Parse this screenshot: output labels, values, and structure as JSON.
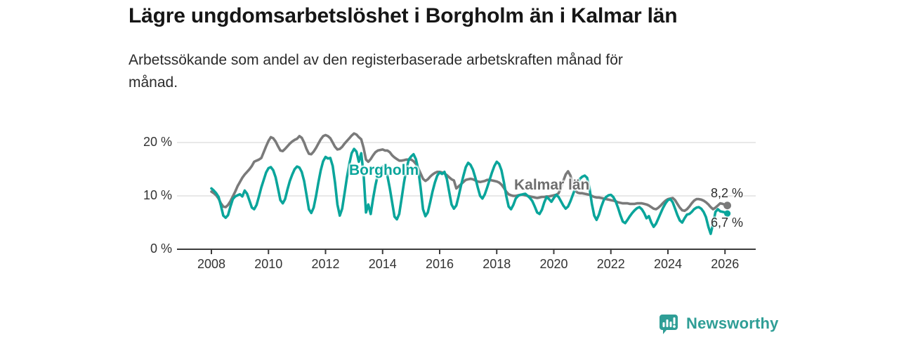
{
  "header": {
    "title": "Lägre ungdomsarbetslöshet i Borgholm än i Kalmar län",
    "subtitle": "Arbetssökande som andel av den registerbaserade arbetskraften månad för månad."
  },
  "footer": {
    "brand": "Newsworthy",
    "brand_color": "#2f9e96"
  },
  "chart_data": {
    "type": "line",
    "title": "Lägre ungdomsarbetslöshet i Borgholm än i Kalmar län",
    "subtitle": "Arbetssökande som andel av den registerbaserade arbetskraften månad för månad.",
    "unit": "%",
    "frequency": "monthly",
    "start": "2008-01",
    "end": "2026-02",
    "grid": "horizontal",
    "legend": "inline-labels",
    "x_axis": {
      "ticks": [
        2008,
        2010,
        2012,
        2014,
        2016,
        2018,
        2020,
        2022,
        2024,
        2026
      ],
      "range": [
        2007.9,
        2027.1
      ]
    },
    "y_axis": {
      "ticks": [
        {
          "value": 20,
          "label": "20 %"
        },
        {
          "value": 10,
          "label": "10 %"
        },
        {
          "value": 0,
          "label": "0 %"
        }
      ],
      "range": [
        0,
        23
      ]
    },
    "series": [
      {
        "name": "Kalmar län",
        "color": "#7A7A7A",
        "label_color": "#6E6E6E",
        "end_label": "8,2 %",
        "end_value": 8.2,
        "end_dot": true,
        "values": [
          10.8,
          10.5,
          10.1,
          9.5,
          8.6,
          8.0,
          7.9,
          8.3,
          9.0,
          9.9,
          10.8,
          11.8,
          12.6,
          13.4,
          14.0,
          14.5,
          15.0,
          15.6,
          16.4,
          16.6,
          16.8,
          17.1,
          18.2,
          19.3,
          20.3,
          21.0,
          20.8,
          20.2,
          19.3,
          18.5,
          18.4,
          18.8,
          19.3,
          19.8,
          20.2,
          20.5,
          20.7,
          21.2,
          20.9,
          20.0,
          18.8,
          17.9,
          17.8,
          18.3,
          19.0,
          19.8,
          20.6,
          21.2,
          21.4,
          21.2,
          20.8,
          20.0,
          19.2,
          18.7,
          18.8,
          19.2,
          19.8,
          20.3,
          20.8,
          21.3,
          21.7,
          21.5,
          21.0,
          20.6,
          19.0,
          16.8,
          16.4,
          16.9,
          17.6,
          18.2,
          18.5,
          18.6,
          18.7,
          18.5,
          18.5,
          18.2,
          17.6,
          17.2,
          16.9,
          16.6,
          16.6,
          16.7,
          16.8,
          16.8,
          16.8,
          16.5,
          16.0,
          15.2,
          14.2,
          13.2,
          12.8,
          13.1,
          13.6,
          14.0,
          14.3,
          14.5,
          14.5,
          14.4,
          14.2,
          13.9,
          13.5,
          13.1,
          12.9,
          11.4,
          11.8,
          12.2,
          12.6,
          13.0,
          13.1,
          13.2,
          13.1,
          12.9,
          12.7,
          12.6,
          12.7,
          12.8,
          13.0,
          13.0,
          12.9,
          12.8,
          12.7,
          12.5,
          12.1,
          11.5,
          10.8,
          10.3,
          10.1,
          10.0,
          10.0,
          10.1,
          10.2,
          10.2,
          10.1,
          10.0,
          9.9,
          9.8,
          9.7,
          9.6,
          9.7,
          9.8,
          9.8,
          9.9,
          9.9,
          10.0,
          10.1,
          10.2,
          10.5,
          11.5,
          12.8,
          14.0,
          14.6,
          13.8,
          12.2,
          11.0,
          10.6,
          10.5,
          10.5,
          10.4,
          10.3,
          10.2,
          10.0,
          9.8,
          9.7,
          9.7,
          9.6,
          9.5,
          9.4,
          9.3,
          9.2,
          9.1,
          9.0,
          8.8,
          8.7,
          8.6,
          8.6,
          8.6,
          8.5,
          8.5,
          8.5,
          8.6,
          8.6,
          8.6,
          8.5,
          8.4,
          8.2,
          7.9,
          7.6,
          7.5,
          7.8,
          8.2,
          8.7,
          9.1,
          9.4,
          9.5,
          9.6,
          9.2,
          8.5,
          7.8,
          7.3,
          7.2,
          7.5,
          8.0,
          8.6,
          9.1,
          9.4,
          9.4,
          9.3,
          9.1,
          8.8,
          8.4,
          7.9,
          7.5,
          7.8,
          8.2,
          8.6,
          8.5,
          8.3,
          8.2
        ]
      },
      {
        "name": "Borgholm",
        "color": "#0AA59B",
        "label_color": "#0AA59B",
        "end_label": "6,7 %",
        "end_value": 6.7,
        "end_dot": true,
        "values": [
          11.4,
          11.0,
          10.5,
          9.8,
          8.2,
          6.3,
          5.9,
          6.4,
          8.0,
          9.4,
          9.9,
          10.1,
          10.3,
          9.9,
          11.0,
          10.4,
          9.1,
          7.8,
          7.5,
          8.3,
          9.9,
          11.6,
          13.0,
          14.4,
          15.2,
          15.4,
          14.8,
          13.5,
          11.4,
          9.2,
          8.6,
          9.4,
          11.2,
          12.8,
          14.0,
          15.0,
          15.5,
          15.3,
          14.5,
          12.8,
          10.2,
          7.5,
          6.8,
          7.8,
          10.0,
          12.5,
          14.8,
          16.5,
          17.3,
          17.0,
          17.1,
          15.6,
          12.5,
          8.4,
          6.3,
          7.6,
          10.5,
          13.5,
          16.0,
          18.0,
          18.8,
          18.3,
          16.4,
          18.0,
          14.0,
          6.9,
          8.4,
          6.6,
          9.5,
          12.0,
          14.0,
          15.2,
          15.5,
          15.0,
          13.8,
          11.5,
          8.8,
          6.1,
          5.6,
          6.6,
          9.5,
          12.5,
          15.0,
          16.8,
          17.4,
          17.8,
          16.9,
          15.0,
          11.5,
          7.5,
          6.2,
          6.9,
          8.8,
          10.8,
          12.5,
          13.8,
          14.4,
          14.1,
          14.5,
          13.2,
          10.8,
          8.4,
          7.6,
          8.2,
          10.0,
          12.0,
          13.8,
          15.4,
          16.2,
          15.8,
          14.9,
          13.4,
          11.6,
          10.0,
          9.5,
          10.3,
          11.6,
          13.0,
          14.4,
          15.6,
          16.4,
          16.0,
          14.8,
          12.6,
          10.0,
          8.0,
          7.5,
          8.3,
          9.5,
          10.0,
          10.2,
          10.3,
          10.4,
          10.0,
          9.6,
          9.0,
          8.0,
          6.9,
          6.6,
          7.4,
          8.8,
          9.8,
          9.4,
          8.9,
          9.6,
          10.2,
          9.8,
          9.0,
          8.2,
          7.6,
          8.0,
          9.0,
          10.2,
          11.4,
          12.4,
          13.2,
          13.6,
          13.8,
          13.4,
          11.5,
          8.5,
          6.3,
          5.5,
          6.5,
          8.0,
          9.2,
          9.8,
          10.1,
          10.2,
          9.8,
          9.0,
          7.8,
          6.4,
          5.2,
          4.9,
          5.5,
          6.2,
          6.8,
          7.3,
          7.7,
          7.9,
          7.5,
          6.8,
          5.8,
          6.2,
          5.0,
          4.2,
          4.8,
          5.8,
          6.8,
          7.8,
          8.6,
          9.2,
          9.4,
          8.8,
          7.6,
          6.4,
          5.4,
          5.0,
          5.8,
          6.5,
          6.6,
          7.0,
          7.5,
          7.8,
          7.9,
          7.6,
          7.0,
          6.0,
          4.2,
          2.9,
          4.8,
          7.0,
          7.5,
          7.1,
          7.0,
          6.9,
          6.7
        ]
      }
    ]
  }
}
